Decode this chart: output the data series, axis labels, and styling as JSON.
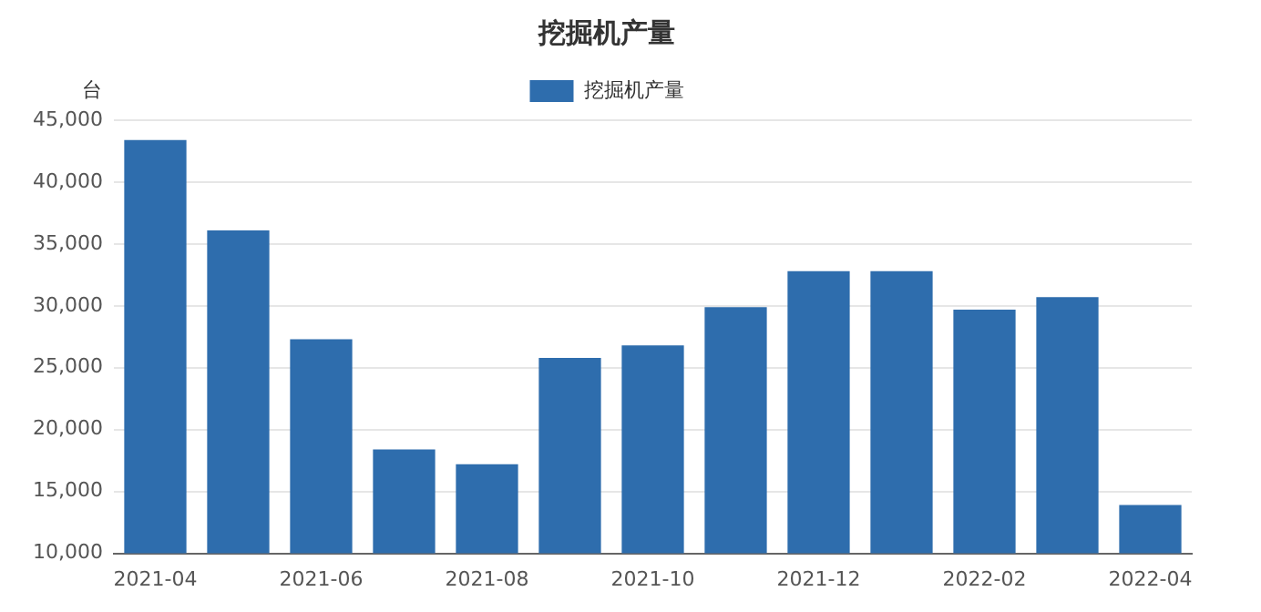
{
  "chart_data": {
    "type": "bar",
    "title": "挖掘机产量",
    "ylabel": "台",
    "categories": [
      "2021-04",
      null,
      "2021-06",
      null,
      "2021-08",
      null,
      "2021-10",
      null,
      "2021-12",
      null,
      "2022-02",
      null,
      "2022-04"
    ],
    "series": [
      {
        "name": "挖掘机产量",
        "color": "#2e6dad",
        "values": [
          43400,
          36100,
          27300,
          18400,
          17200,
          25800,
          26800,
          29900,
          32800,
          32800,
          29700,
          30700,
          13900
        ]
      }
    ],
    "ylim": [
      10000,
      45000
    ],
    "yticks": [
      {
        "value": 10000,
        "label": "10,000"
      },
      {
        "value": 15000,
        "label": "15,000"
      },
      {
        "value": 20000,
        "label": "20,000"
      },
      {
        "value": 25000,
        "label": "25,000"
      },
      {
        "value": 30000,
        "label": "30,000"
      },
      {
        "value": 35000,
        "label": "35,000"
      },
      {
        "value": 40000,
        "label": "40,000"
      },
      {
        "value": 45000,
        "label": "45,000"
      }
    ],
    "grid": "y",
    "legend": "top"
  }
}
